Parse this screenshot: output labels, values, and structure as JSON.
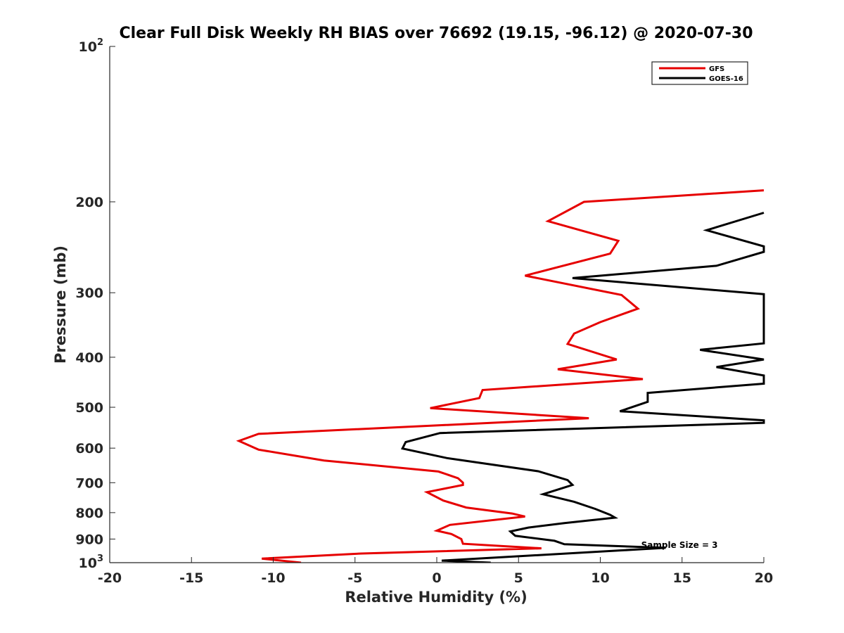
{
  "chart_data": {
    "type": "line",
    "title": "Clear Full Disk Weekly RH BIAS over 76692 (19.15, -96.12) @ 2020-07-30",
    "xlabel": "Relative Humidity (%)",
    "ylabel": "Pressure (mb)",
    "xlim": [
      -20,
      20
    ],
    "ylim": [
      100,
      1000
    ],
    "y_scale": "log",
    "y_reversed": true,
    "x_ticks": [
      "-20",
      "-15",
      "-10",
      "-5",
      "0",
      "5",
      "10",
      "15",
      "20"
    ],
    "y_ticks": [
      "200",
      "300",
      "400",
      "500",
      "600",
      "700",
      "800",
      "900"
    ],
    "y_ticks_power": [
      {
        "base": "10",
        "exp": "2",
        "value": 100
      },
      {
        "base": "10",
        "exp": "3",
        "value": 1000
      }
    ],
    "legend": {
      "position": "top-right",
      "entries": [
        "GFS",
        "GOES-16"
      ]
    },
    "annotations": [
      {
        "text": "Sample Size = 3",
        "x": 12.5,
        "y": 925
      }
    ],
    "series": [
      {
        "name": "GFS",
        "color": "#e60000",
        "points": [
          [
            20,
            190
          ],
          [
            9,
            200
          ],
          [
            6.8,
            218
          ],
          [
            11.1,
            238
          ],
          [
            10.6,
            252
          ],
          [
            5.4,
            278
          ],
          [
            11.3,
            303
          ],
          [
            12.3,
            322
          ],
          [
            10,
            342
          ],
          [
            8.4,
            360
          ],
          [
            8,
            377
          ],
          [
            11,
            404
          ],
          [
            7.4,
            422
          ],
          [
            12.6,
            441
          ],
          [
            2.8,
            463
          ],
          [
            2.6,
            480
          ],
          [
            -0.4,
            502
          ],
          [
            9.3,
            525
          ],
          [
            -10.9,
            563
          ],
          [
            -12.1,
            581
          ],
          [
            -10.9,
            604
          ],
          [
            -6.9,
            634
          ],
          [
            0.1,
            666
          ],
          [
            1.3,
            686
          ],
          [
            1.6,
            700
          ],
          [
            1.6,
            707
          ],
          [
            -0.6,
            730
          ],
          [
            0.4,
            758
          ],
          [
            1.8,
            782
          ],
          [
            4.6,
            803
          ],
          [
            5.4,
            814
          ],
          [
            0.8,
            845
          ],
          [
            0,
            867
          ],
          [
            0.9,
            880
          ],
          [
            1.5,
            900
          ],
          [
            1.6,
            919
          ],
          [
            6.4,
            938
          ],
          [
            -4.6,
            960
          ],
          [
            -10.7,
            982
          ],
          [
            -8.3,
            1000
          ]
        ]
      },
      {
        "name": "GOES-16",
        "color": "#000000",
        "points": [
          [
            20,
            210
          ],
          [
            16.5,
            227
          ],
          [
            20,
            244
          ],
          [
            20,
            250
          ],
          [
            17.1,
            266
          ],
          [
            8.3,
            281
          ],
          [
            20,
            302
          ],
          [
            20,
            376
          ],
          [
            16.1,
            387
          ],
          [
            20,
            404
          ],
          [
            17.1,
            418
          ],
          [
            20,
            434
          ],
          [
            20,
            450
          ],
          [
            12.9,
            469
          ],
          [
            12.9,
            488
          ],
          [
            11.2,
            509
          ],
          [
            20,
            530
          ],
          [
            20,
            536
          ],
          [
            0.2,
            561
          ],
          [
            -1.9,
            584
          ],
          [
            -2.1,
            601
          ],
          [
            0.6,
            627
          ],
          [
            6.2,
            665
          ],
          [
            8,
            692
          ],
          [
            8.3,
            707
          ],
          [
            8,
            712
          ],
          [
            6.5,
            737
          ],
          [
            8.4,
            762
          ],
          [
            9.7,
            787
          ],
          [
            10.6,
            808
          ],
          [
            10.9,
            818
          ],
          [
            7.8,
            838
          ],
          [
            5.6,
            855
          ],
          [
            4.5,
            870
          ],
          [
            4.8,
            887
          ],
          [
            7.2,
            907
          ],
          [
            7.8,
            921
          ],
          [
            14,
            936
          ],
          [
            0.3,
            991
          ],
          [
            3.3,
            1000
          ]
        ]
      }
    ]
  }
}
